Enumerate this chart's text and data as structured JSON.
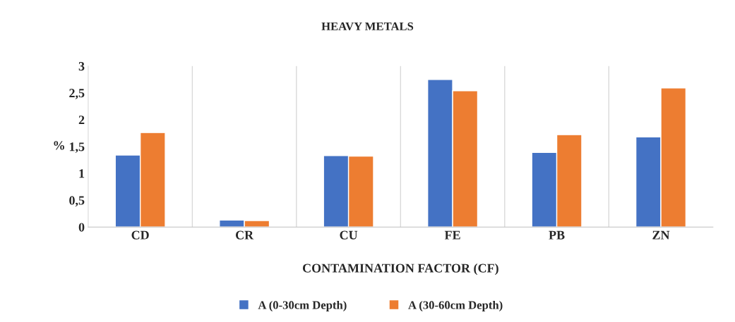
{
  "chart_data": {
    "type": "bar",
    "title": "HEAVY METALS",
    "xlabel": "CONTAMINATION FACTOR (CF)",
    "ylabel": "%",
    "categories": [
      "CD",
      "CR",
      "CU",
      "FE",
      "PB",
      "ZN"
    ],
    "series": [
      {
        "name": "A (0-30cm Depth)",
        "color": "#4472c4",
        "values": [
          1.34,
          0.13,
          1.33,
          2.75,
          1.39,
          1.68
        ]
      },
      {
        "name": "A (30-60cm Depth)",
        "color": "#ed7d31",
        "values": [
          1.76,
          0.12,
          1.32,
          2.54,
          1.72,
          2.59
        ]
      }
    ],
    "ylim": [
      0,
      3
    ],
    "yticks": [
      0,
      {
        "value": 0.5,
        "label": "0,5"
      },
      1,
      {
        "value": 1.5,
        "label": "1,5"
      },
      2,
      {
        "value": 2.5,
        "label": "2,5"
      },
      3
    ],
    "grid": "x",
    "legend": "bottom"
  }
}
